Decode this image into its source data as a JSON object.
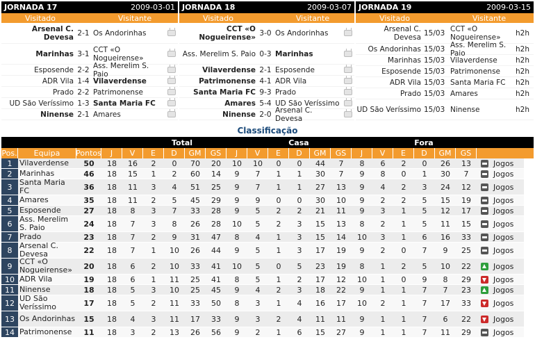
{
  "jornadas": [
    {
      "title": "JORNADA 17",
      "date": "2009-03-01",
      "col_home": "Visitado",
      "col_away": "Visitante",
      "matches": [
        {
          "home": "Arsenal C. Devesa",
          "score": "2-1",
          "away": "Os Andorinhas",
          "bold": "home"
        },
        {
          "home": "Marinhas",
          "score": "3-1",
          "away": "CCT «O Nogueirense»",
          "bold": "home"
        },
        {
          "home": "Esposende",
          "score": "2-2",
          "away": "Ass. Merelim S. Paio",
          "bold": ""
        },
        {
          "home": "ADR Vila",
          "score": "1-4",
          "away": "Vilaverdense",
          "bold": "away"
        },
        {
          "home": "Prado",
          "score": "2-2",
          "away": "Patrimonense",
          "bold": ""
        },
        {
          "home": "UD São Veríssimo",
          "score": "1-3",
          "away": "Santa Maria FC",
          "bold": "away"
        },
        {
          "home": "Ninense",
          "score": "2-1",
          "away": "Amares",
          "bold": "home"
        }
      ]
    },
    {
      "title": "JORNADA 18",
      "date": "2009-03-07",
      "col_home": "Visitado",
      "col_away": "Visitante",
      "matches": [
        {
          "home": "CCT «O Nogueirense»",
          "score": "3-0",
          "away": "Os Andorinhas",
          "bold": "home"
        },
        {
          "home": "Ass. Merelim S. Paio",
          "score": "0-3",
          "away": "Marinhas",
          "bold": "away"
        },
        {
          "home": "Vilaverdense",
          "score": "2-1",
          "away": "Esposende",
          "bold": "home"
        },
        {
          "home": "Patrimonense",
          "score": "4-1",
          "away": "ADR Vila",
          "bold": "home"
        },
        {
          "home": "Santa Maria FC",
          "score": "9-3",
          "away": "Prado",
          "bold": "home"
        },
        {
          "home": "Amares",
          "score": "5-4",
          "away": "UD São Veríssimo",
          "bold": "home"
        },
        {
          "home": "Ninense",
          "score": "2-0",
          "away": "Arsenal C. Devesa",
          "bold": "home"
        }
      ]
    },
    {
      "title": "JORNADA 19",
      "date": "2009-03-15",
      "col_home": "Visitado",
      "col_away": "Visitante",
      "matches": [
        {
          "home": "Arsenal C. Devesa",
          "date": "15/03",
          "away": "CCT «O Nogueirense»",
          "time": "h2h"
        },
        {
          "home": "Os Andorinhas",
          "date": "15/03",
          "away": "Ass. Merelim S. Paio",
          "time": "h2h"
        },
        {
          "home": "Marinhas",
          "date": "15/03",
          "away": "Vilaverdense",
          "time": "h2h"
        },
        {
          "home": "Esposende",
          "date": "15/03",
          "away": "Patrimonense",
          "time": "h2h"
        },
        {
          "home": "ADR Vila",
          "date": "15/03",
          "away": "Santa Maria FC",
          "time": "h2h"
        },
        {
          "home": "Prado",
          "date": "15/03",
          "away": "Amares",
          "time": "h2h"
        },
        {
          "home": "UD São Veríssimo",
          "date": "15/03",
          "away": "Ninense",
          "time": "h2h"
        }
      ]
    }
  ],
  "classificacao": {
    "title": "Classificação",
    "groups": {
      "total": "Total",
      "casa": "Casa",
      "fora": "Fora"
    },
    "headers": [
      "Pos.",
      "Equipa",
      "Pontos",
      "J",
      "V",
      "E",
      "D",
      "GM",
      "GS",
      "J",
      "V",
      "E",
      "D",
      "GM",
      "GS",
      "J",
      "V",
      "E",
      "D",
      "GM",
      "GS"
    ],
    "games_label": "Jogos",
    "rows": [
      {
        "pos": "1",
        "team": "Vilaverdense",
        "pts": "50",
        "total": [
          "18",
          "16",
          "2",
          "0",
          "70",
          "20"
        ],
        "casa": [
          "10",
          "10",
          "0",
          "0",
          "44",
          "7"
        ],
        "fora": [
          "8",
          "6",
          "2",
          "0",
          "26",
          "13"
        ],
        "trend": "eq"
      },
      {
        "pos": "2",
        "team": "Marinhas",
        "pts": "46",
        "total": [
          "18",
          "15",
          "1",
          "2",
          "60",
          "14"
        ],
        "casa": [
          "9",
          "7",
          "1",
          "1",
          "30",
          "7"
        ],
        "fora": [
          "9",
          "8",
          "0",
          "1",
          "30",
          "7"
        ],
        "trend": "eq"
      },
      {
        "pos": "3",
        "team": "Santa Maria FC",
        "pts": "36",
        "total": [
          "18",
          "11",
          "3",
          "4",
          "51",
          "25"
        ],
        "casa": [
          "9",
          "7",
          "1",
          "1",
          "27",
          "13"
        ],
        "fora": [
          "9",
          "4",
          "2",
          "3",
          "24",
          "12"
        ],
        "trend": "eq"
      },
      {
        "pos": "4",
        "team": "Amares",
        "pts": "35",
        "total": [
          "18",
          "11",
          "2",
          "5",
          "45",
          "29"
        ],
        "casa": [
          "9",
          "9",
          "0",
          "0",
          "30",
          "10"
        ],
        "fora": [
          "9",
          "2",
          "2",
          "5",
          "15",
          "19"
        ],
        "trend": "eq"
      },
      {
        "pos": "5",
        "team": "Esposende",
        "pts": "27",
        "total": [
          "18",
          "8",
          "3",
          "7",
          "33",
          "28"
        ],
        "casa": [
          "9",
          "5",
          "2",
          "2",
          "21",
          "11"
        ],
        "fora": [
          "9",
          "3",
          "1",
          "5",
          "12",
          "17"
        ],
        "trend": "eq"
      },
      {
        "pos": "6",
        "team": "Ass. Merelim S. Paio",
        "pts": "24",
        "total": [
          "18",
          "7",
          "3",
          "8",
          "26",
          "28"
        ],
        "casa": [
          "10",
          "5",
          "2",
          "3",
          "15",
          "13"
        ],
        "fora": [
          "8",
          "2",
          "1",
          "5",
          "11",
          "15"
        ],
        "trend": "eq"
      },
      {
        "pos": "7",
        "team": "Prado",
        "pts": "23",
        "total": [
          "18",
          "7",
          "2",
          "9",
          "31",
          "47"
        ],
        "casa": [
          "8",
          "4",
          "1",
          "3",
          "15",
          "14"
        ],
        "fora": [
          "10",
          "3",
          "1",
          "6",
          "16",
          "33"
        ],
        "trend": "eq"
      },
      {
        "pos": "8",
        "team": "Arsenal C. Devesa",
        "pts": "22",
        "total": [
          "18",
          "7",
          "1",
          "10",
          "26",
          "44"
        ],
        "casa": [
          "9",
          "5",
          "1",
          "3",
          "17",
          "19"
        ],
        "fora": [
          "9",
          "2",
          "0",
          "7",
          "9",
          "25"
        ],
        "trend": "eq"
      },
      {
        "pos": "9",
        "team": "CCT «O Nogueirense»",
        "pts": "20",
        "total": [
          "18",
          "6",
          "2",
          "10",
          "33",
          "41"
        ],
        "casa": [
          "10",
          "5",
          "0",
          "5",
          "23",
          "19"
        ],
        "fora": [
          "8",
          "1",
          "2",
          "5",
          "10",
          "22"
        ],
        "trend": "up"
      },
      {
        "pos": "10",
        "team": "ADR Vila",
        "pts": "19",
        "total": [
          "18",
          "6",
          "1",
          "11",
          "25",
          "41"
        ],
        "casa": [
          "8",
          "5",
          "1",
          "2",
          "17",
          "12"
        ],
        "fora": [
          "10",
          "1",
          "0",
          "9",
          "8",
          "29"
        ],
        "trend": "down"
      },
      {
        "pos": "11",
        "team": "Ninense",
        "pts": "18",
        "total": [
          "18",
          "5",
          "3",
          "10",
          "25",
          "45"
        ],
        "casa": [
          "9",
          "4",
          "2",
          "3",
          "18",
          "22"
        ],
        "fora": [
          "9",
          "1",
          "1",
          "7",
          "7",
          "23"
        ],
        "trend": "up"
      },
      {
        "pos": "12",
        "team": "UD São Veríssimo",
        "pts": "17",
        "total": [
          "18",
          "5",
          "2",
          "11",
          "33",
          "50"
        ],
        "casa": [
          "8",
          "3",
          "1",
          "4",
          "16",
          "17"
        ],
        "fora": [
          "10",
          "2",
          "1",
          "7",
          "17",
          "33"
        ],
        "trend": "down"
      },
      {
        "pos": "13",
        "team": "Os Andorinhas",
        "pts": "15",
        "total": [
          "18",
          "4",
          "3",
          "11",
          "17",
          "33"
        ],
        "casa": [
          "9",
          "3",
          "2",
          "4",
          "11",
          "11"
        ],
        "fora": [
          "9",
          "1",
          "1",
          "7",
          "6",
          "22"
        ],
        "trend": "down"
      },
      {
        "pos": "14",
        "team": "Patrimonense",
        "pts": "11",
        "total": [
          "18",
          "3",
          "2",
          "13",
          "26",
          "56"
        ],
        "casa": [
          "9",
          "2",
          "1",
          "6",
          "15",
          "27"
        ],
        "fora": [
          "9",
          "1",
          "1",
          "7",
          "11",
          "29"
        ],
        "trend": "eq"
      }
    ]
  }
}
